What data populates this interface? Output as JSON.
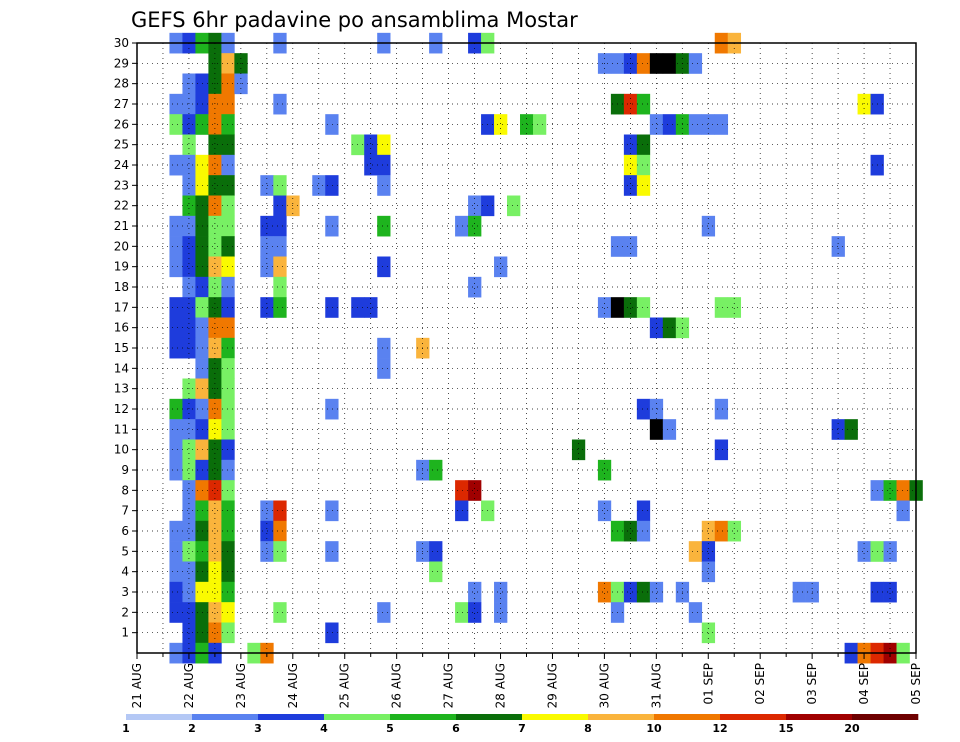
{
  "chart_data": {
    "type": "heatmap",
    "title": "GEFS 6hr padavine po ansamblima Mostar",
    "x_tick_labels": [
      "21 AUG",
      "22 AUG",
      "23 AUG",
      "24 AUG",
      "25 AUG",
      "26 AUG",
      "27 AUG",
      "28 AUG",
      "29 AUG",
      "30 AUG",
      "31 AUG",
      "01 SEP",
      "02 SEP",
      "03 SEP",
      "04 SEP",
      "05 SEP"
    ],
    "y_tick_labels": [
      "1",
      "2",
      "3",
      "4",
      "5",
      "6",
      "7",
      "8",
      "9",
      "10",
      "11",
      "12",
      "13",
      "14",
      "15",
      "16",
      "17",
      "18",
      "19",
      "20",
      "21",
      "22",
      "23",
      "24",
      "25",
      "26",
      "27",
      "28",
      "29",
      "30"
    ],
    "x_range_steps": [
      0,
      60
    ],
    "y_range_members": [
      0,
      30
    ],
    "grid": true,
    "colorbar": {
      "labels": [
        "1",
        "2",
        "3",
        "4",
        "5",
        "6",
        "7",
        "8",
        "10",
        "12",
        "15",
        "20"
      ],
      "colors": [
        "#b4c8f5",
        "#5a82f0",
        "#1e3cdc",
        "#78f064",
        "#1eb41e",
        "#0a6e0a",
        "#fafa00",
        "#fab43c",
        "#f07800",
        "#dc2800",
        "#a00000",
        "#6e0000"
      ]
    },
    "cells": [
      [
        3,
        30,
        1
      ],
      [
        4,
        30,
        2
      ],
      [
        5,
        30,
        4
      ],
      [
        6,
        30,
        5
      ],
      [
        7,
        30,
        1
      ],
      [
        11,
        30,
        1
      ],
      [
        19,
        30,
        1
      ],
      [
        23,
        30,
        1
      ],
      [
        26,
        30,
        2
      ],
      [
        27,
        30,
        3
      ],
      [
        45,
        30,
        8
      ],
      [
        46,
        30,
        7
      ],
      [
        6,
        29,
        5
      ],
      [
        7,
        29,
        7
      ],
      [
        8,
        29,
        5
      ],
      [
        36,
        29,
        1
      ],
      [
        37,
        29,
        1
      ],
      [
        38,
        29,
        2
      ],
      [
        39,
        29,
        8
      ],
      [
        40,
        29,
        12
      ],
      [
        41,
        29,
        12
      ],
      [
        42,
        29,
        5
      ],
      [
        43,
        29,
        1
      ],
      [
        4,
        28,
        1
      ],
      [
        5,
        28,
        2
      ],
      [
        6,
        28,
        5
      ],
      [
        7,
        28,
        8
      ],
      [
        8,
        28,
        1
      ],
      [
        3,
        27,
        1
      ],
      [
        4,
        27,
        1
      ],
      [
        5,
        27,
        2
      ],
      [
        6,
        27,
        8
      ],
      [
        7,
        27,
        8
      ],
      [
        11,
        27,
        1
      ],
      [
        37,
        27,
        5
      ],
      [
        38,
        27,
        9
      ],
      [
        39,
        27,
        4
      ],
      [
        56,
        27,
        6
      ],
      [
        57,
        27,
        2
      ],
      [
        3,
        26,
        3
      ],
      [
        4,
        26,
        2
      ],
      [
        5,
        26,
        4
      ],
      [
        6,
        26,
        8
      ],
      [
        7,
        26,
        4
      ],
      [
        15,
        26,
        1
      ],
      [
        27,
        26,
        2
      ],
      [
        28,
        26,
        6
      ],
      [
        30,
        26,
        4
      ],
      [
        31,
        26,
        3
      ],
      [
        40,
        26,
        1
      ],
      [
        41,
        26,
        2
      ],
      [
        42,
        26,
        4
      ],
      [
        43,
        26,
        1
      ],
      [
        44,
        26,
        1
      ],
      [
        45,
        26,
        1
      ],
      [
        4,
        25,
        3
      ],
      [
        6,
        25,
        5
      ],
      [
        7,
        25,
        5
      ],
      [
        17,
        25,
        3
      ],
      [
        18,
        25,
        2
      ],
      [
        19,
        25,
        6
      ],
      [
        38,
        25,
        2
      ],
      [
        39,
        25,
        5
      ],
      [
        3,
        24,
        1
      ],
      [
        4,
        24,
        1
      ],
      [
        5,
        24,
        6
      ],
      [
        6,
        24,
        8
      ],
      [
        7,
        24,
        1
      ],
      [
        18,
        24,
        2
      ],
      [
        19,
        24,
        2
      ],
      [
        38,
        24,
        6
      ],
      [
        39,
        24,
        3
      ],
      [
        57,
        24,
        2
      ],
      [
        4,
        23,
        1
      ],
      [
        5,
        23,
        6
      ],
      [
        6,
        23,
        5
      ],
      [
        7,
        23,
        5
      ],
      [
        10,
        23,
        1
      ],
      [
        11,
        23,
        3
      ],
      [
        14,
        23,
        1
      ],
      [
        15,
        23,
        2
      ],
      [
        19,
        23,
        1
      ],
      [
        38,
        23,
        2
      ],
      [
        39,
        23,
        6
      ],
      [
        4,
        22,
        4
      ],
      [
        5,
        22,
        5
      ],
      [
        6,
        22,
        8
      ],
      [
        7,
        22,
        3
      ],
      [
        11,
        22,
        2
      ],
      [
        12,
        22,
        7
      ],
      [
        26,
        22,
        1
      ],
      [
        27,
        22,
        2
      ],
      [
        29,
        22,
        3
      ],
      [
        3,
        21,
        1
      ],
      [
        4,
        21,
        1
      ],
      [
        5,
        21,
        5
      ],
      [
        6,
        21,
        3
      ],
      [
        7,
        21,
        3
      ],
      [
        10,
        21,
        2
      ],
      [
        11,
        21,
        2
      ],
      [
        15,
        21,
        1
      ],
      [
        19,
        21,
        4
      ],
      [
        25,
        21,
        1
      ],
      [
        26,
        21,
        4
      ],
      [
        44,
        21,
        1
      ],
      [
        3,
        20,
        1
      ],
      [
        4,
        20,
        2
      ],
      [
        5,
        20,
        5
      ],
      [
        6,
        20,
        3
      ],
      [
        7,
        20,
        5
      ],
      [
        10,
        20,
        1
      ],
      [
        11,
        20,
        1
      ],
      [
        37,
        20,
        1
      ],
      [
        38,
        20,
        1
      ],
      [
        54,
        20,
        1
      ],
      [
        3,
        19,
        1
      ],
      [
        4,
        19,
        2
      ],
      [
        5,
        19,
        5
      ],
      [
        6,
        19,
        7
      ],
      [
        7,
        19,
        6
      ],
      [
        10,
        19,
        1
      ],
      [
        11,
        19,
        7
      ],
      [
        19,
        19,
        2
      ],
      [
        28,
        19,
        1
      ],
      [
        4,
        18,
        1
      ],
      [
        5,
        18,
        2
      ],
      [
        6,
        18,
        3
      ],
      [
        7,
        18,
        1
      ],
      [
        11,
        18,
        3
      ],
      [
        26,
        18,
        1
      ],
      [
        3,
        17,
        2
      ],
      [
        4,
        17,
        2
      ],
      [
        5,
        17,
        3
      ],
      [
        6,
        17,
        5
      ],
      [
        7,
        17,
        2
      ],
      [
        10,
        17,
        2
      ],
      [
        11,
        17,
        4
      ],
      [
        15,
        17,
        2
      ],
      [
        17,
        17,
        2
      ],
      [
        18,
        17,
        2
      ],
      [
        36,
        17,
        1
      ],
      [
        37,
        17,
        12
      ],
      [
        38,
        17,
        5
      ],
      [
        39,
        17,
        3
      ],
      [
        45,
        17,
        3
      ],
      [
        46,
        17,
        3
      ],
      [
        3,
        16,
        2
      ],
      [
        4,
        16,
        2
      ],
      [
        5,
        16,
        1
      ],
      [
        6,
        16,
        8
      ],
      [
        7,
        16,
        8
      ],
      [
        40,
        16,
        2
      ],
      [
        41,
        16,
        5
      ],
      [
        42,
        16,
        3
      ],
      [
        3,
        15,
        2
      ],
      [
        4,
        15,
        2
      ],
      [
        5,
        15,
        1
      ],
      [
        6,
        15,
        7
      ],
      [
        7,
        15,
        4
      ],
      [
        19,
        15,
        1
      ],
      [
        22,
        15,
        7
      ],
      [
        5,
        14,
        1
      ],
      [
        6,
        14,
        5
      ],
      [
        7,
        14,
        3
      ],
      [
        19,
        14,
        1
      ],
      [
        4,
        13,
        3
      ],
      [
        5,
        13,
        7
      ],
      [
        6,
        13,
        5
      ],
      [
        7,
        13,
        3
      ],
      [
        3,
        12,
        4
      ],
      [
        4,
        12,
        2
      ],
      [
        5,
        12,
        1
      ],
      [
        6,
        12,
        8
      ],
      [
        7,
        12,
        3
      ],
      [
        15,
        12,
        1
      ],
      [
        39,
        12,
        2
      ],
      [
        40,
        12,
        1
      ],
      [
        45,
        12,
        1
      ],
      [
        3,
        11,
        1
      ],
      [
        4,
        11,
        1
      ],
      [
        5,
        11,
        2
      ],
      [
        6,
        11,
        6
      ],
      [
        7,
        11,
        3
      ],
      [
        40,
        11,
        12
      ],
      [
        41,
        11,
        1
      ],
      [
        54,
        11,
        2
      ],
      [
        55,
        11,
        5
      ],
      [
        3,
        10,
        1
      ],
      [
        4,
        10,
        3
      ],
      [
        5,
        10,
        7
      ],
      [
        6,
        10,
        5
      ],
      [
        7,
        10,
        2
      ],
      [
        34,
        10,
        5
      ],
      [
        45,
        10,
        2
      ],
      [
        3,
        9,
        1
      ],
      [
        4,
        9,
        3
      ],
      [
        5,
        9,
        2
      ],
      [
        6,
        9,
        5
      ],
      [
        7,
        9,
        1
      ],
      [
        22,
        9,
        1
      ],
      [
        23,
        9,
        4
      ],
      [
        36,
        9,
        4
      ],
      [
        4,
        8,
        1
      ],
      [
        5,
        8,
        8
      ],
      [
        6,
        8,
        9
      ],
      [
        7,
        8,
        3
      ],
      [
        25,
        8,
        9
      ],
      [
        26,
        8,
        10
      ],
      [
        57,
        8,
        1
      ],
      [
        58,
        8,
        4
      ],
      [
        59,
        8,
        8
      ],
      [
        60,
        8,
        5
      ],
      [
        4,
        7,
        1
      ],
      [
        5,
        7,
        4
      ],
      [
        6,
        7,
        7
      ],
      [
        7,
        7,
        4
      ],
      [
        10,
        7,
        1
      ],
      [
        11,
        7,
        9
      ],
      [
        15,
        7,
        1
      ],
      [
        25,
        7,
        2
      ],
      [
        27,
        7,
        3
      ],
      [
        36,
        7,
        1
      ],
      [
        39,
        7,
        2
      ],
      [
        59,
        7,
        1
      ],
      [
        3,
        6,
        1
      ],
      [
        4,
        6,
        1
      ],
      [
        5,
        6,
        5
      ],
      [
        6,
        6,
        7
      ],
      [
        7,
        6,
        4
      ],
      [
        10,
        6,
        2
      ],
      [
        11,
        6,
        8
      ],
      [
        37,
        6,
        4
      ],
      [
        38,
        6,
        5
      ],
      [
        39,
        6,
        1
      ],
      [
        44,
        6,
        7
      ],
      [
        45,
        6,
        8
      ],
      [
        46,
        6,
        3
      ],
      [
        3,
        5,
        1
      ],
      [
        4,
        5,
        3
      ],
      [
        5,
        5,
        4
      ],
      [
        6,
        5,
        7
      ],
      [
        7,
        5,
        5
      ],
      [
        10,
        5,
        1
      ],
      [
        11,
        5,
        3
      ],
      [
        15,
        5,
        1
      ],
      [
        22,
        5,
        1
      ],
      [
        23,
        5,
        2
      ],
      [
        43,
        5,
        7
      ],
      [
        44,
        5,
        2
      ],
      [
        56,
        5,
        1
      ],
      [
        57,
        5,
        3
      ],
      [
        58,
        5,
        1
      ],
      [
        3,
        4,
        1
      ],
      [
        4,
        4,
        1
      ],
      [
        5,
        4,
        5
      ],
      [
        6,
        4,
        6
      ],
      [
        7,
        4,
        5
      ],
      [
        23,
        4,
        3
      ],
      [
        44,
        4,
        1
      ],
      [
        3,
        3,
        2
      ],
      [
        4,
        3,
        1
      ],
      [
        5,
        3,
        6
      ],
      [
        6,
        3,
        6
      ],
      [
        7,
        3,
        4
      ],
      [
        26,
        3,
        1
      ],
      [
        28,
        3,
        1
      ],
      [
        36,
        3,
        8
      ],
      [
        37,
        3,
        3
      ],
      [
        38,
        3,
        2
      ],
      [
        39,
        3,
        5
      ],
      [
        40,
        3,
        1
      ],
      [
        42,
        3,
        1
      ],
      [
        51,
        3,
        1
      ],
      [
        52,
        3,
        1
      ],
      [
        57,
        3,
        2
      ],
      [
        58,
        3,
        2
      ],
      [
        3,
        2,
        2
      ],
      [
        4,
        2,
        2
      ],
      [
        5,
        2,
        5
      ],
      [
        6,
        2,
        7
      ],
      [
        7,
        2,
        6
      ],
      [
        11,
        2,
        3
      ],
      [
        19,
        2,
        1
      ],
      [
        25,
        2,
        3
      ],
      [
        26,
        2,
        2
      ],
      [
        28,
        2,
        1
      ],
      [
        37,
        2,
        1
      ],
      [
        43,
        2,
        1
      ],
      [
        4,
        1,
        2
      ],
      [
        5,
        1,
        5
      ],
      [
        6,
        1,
        8
      ],
      [
        7,
        1,
        3
      ],
      [
        15,
        1,
        2
      ],
      [
        44,
        1,
        3
      ],
      [
        3,
        0,
        1
      ],
      [
        4,
        0,
        2
      ],
      [
        5,
        0,
        4
      ],
      [
        6,
        0,
        2
      ],
      [
        9,
        0,
        3
      ],
      [
        10,
        0,
        8
      ],
      [
        55,
        0,
        2
      ],
      [
        56,
        0,
        8
      ],
      [
        57,
        0,
        9
      ],
      [
        58,
        0,
        10
      ],
      [
        59,
        0,
        3
      ]
    ]
  }
}
